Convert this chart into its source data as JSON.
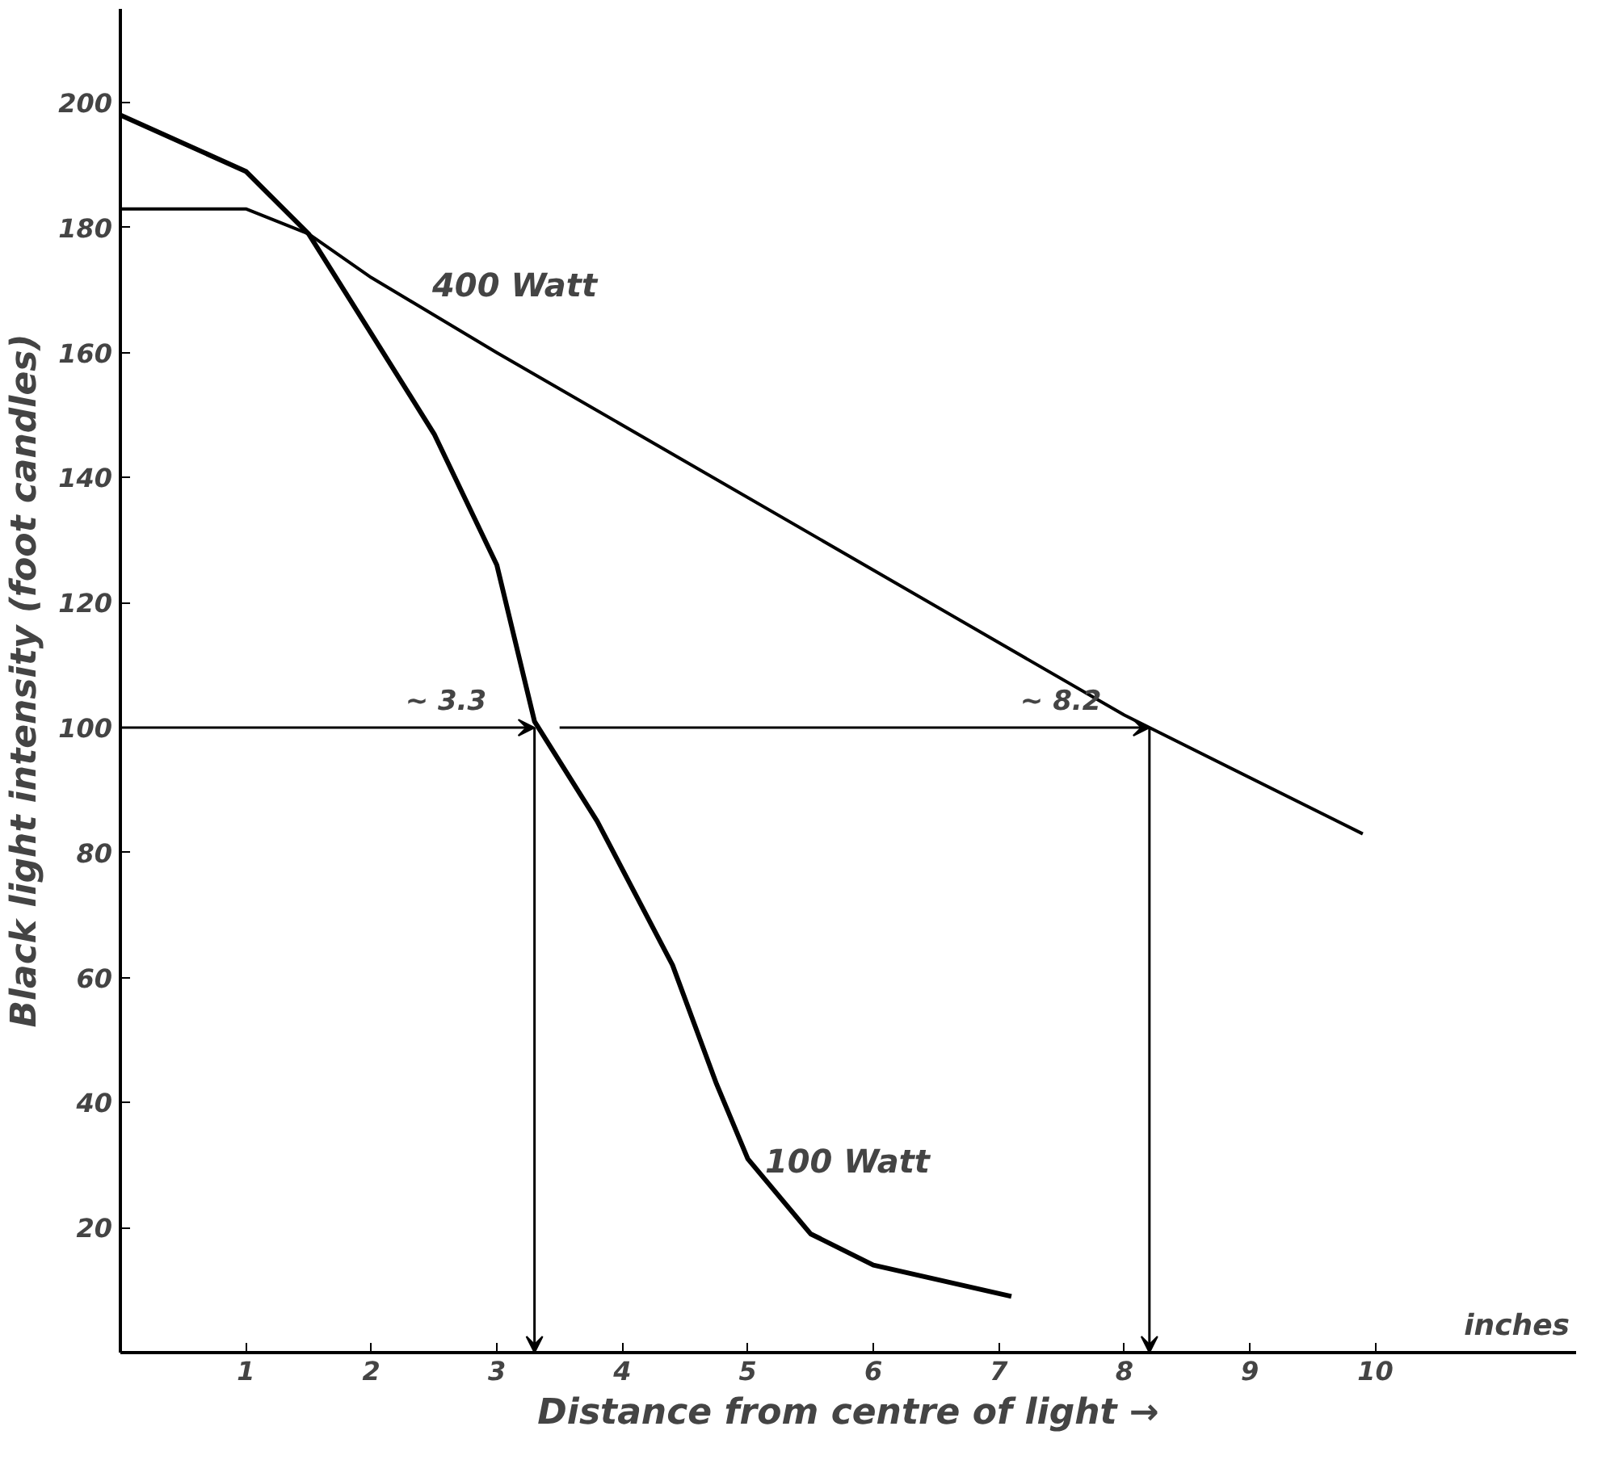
{
  "chart_data": {
    "type": "line",
    "xlabel": "Distance from centre of light →",
    "ylabel": "Black light intensity (foot candles)",
    "xlim": [
      0,
      11.6
    ],
    "ylim": [
      0,
      215
    ],
    "xticks": [
      1,
      2,
      3,
      4,
      5,
      6,
      7,
      8,
      9,
      10
    ],
    "yticks": [
      20,
      40,
      60,
      80,
      100,
      120,
      140,
      160,
      180,
      200
    ],
    "grid": false,
    "legend": false,
    "marker": "none",
    "line_style": "solid",
    "series": [
      {
        "name": "400 Watt",
        "color": "#000000",
        "x": [
          0,
          1,
          1.5,
          2,
          3,
          8,
          9.9
        ],
        "values": [
          183,
          183,
          179,
          172,
          160,
          102,
          83
        ]
      },
      {
        "name": "100 Watt",
        "color": "#000000",
        "x": [
          0,
          1,
          1.5,
          2,
          2.5,
          3,
          3.3,
          3.8,
          4.4,
          4.75,
          5,
          5.5,
          6,
          7.1
        ],
        "values": [
          198,
          189,
          179,
          163,
          147,
          126,
          101,
          85,
          62,
          43,
          31,
          19,
          14,
          9
        ]
      }
    ],
    "annotations": [
      {
        "text": "~ 3.3",
        "x": 3.3,
        "y": 100
      },
      {
        "text": "~ 8.2",
        "x": 8.2,
        "y": 100
      },
      "inches"
    ]
  }
}
